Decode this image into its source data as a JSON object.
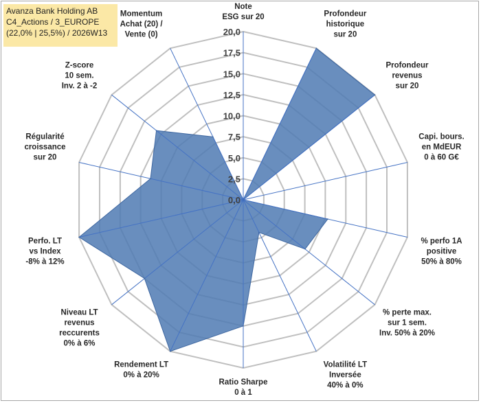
{
  "title": {
    "line1": "Avanza Bank Holding AB",
    "line2": "C4_Actions / 3_EUROPE",
    "line3": "(22,0% | 25,5%) / 2026W13"
  },
  "colors": {
    "fill": "#4f7ab3",
    "stroke": "#3d66a0",
    "grid": "#bfbfbf",
    "spoke": "#4472c4"
  },
  "chart_data": {
    "type": "radar",
    "title": "Avanza Bank Holding AB",
    "rlim": [
      0,
      20
    ],
    "tick_values": [
      0,
      2.5,
      5,
      7.5,
      10,
      12.5,
      15,
      17.5,
      20
    ],
    "tick_labels": [
      "0,0",
      "2,5",
      "5,0",
      "7,5",
      "10,0",
      "12,5",
      "15,0",
      "17,5",
      "20,0"
    ],
    "axes": [
      {
        "label": [
          "Note",
          "ESG sur 20"
        ],
        "value": 0
      },
      {
        "label": [
          "Profondeur",
          "historique",
          "sur 20"
        ],
        "value": 20
      },
      {
        "label": [
          "Profondeur",
          "revenus",
          "sur 20"
        ],
        "value": 20
      },
      {
        "label": [
          "Capi. bours.",
          "en MdEUR",
          "0 à 60 G€"
        ],
        "value": 0
      },
      {
        "label": [
          "% perfo 1A",
          "positive",
          "50% à 80%"
        ],
        "value": 10.3
      },
      {
        "label": [
          "% perte max.",
          "sur 1 sem.",
          "Inv. 50% à 20%"
        ],
        "value": 9.4
      },
      {
        "label": [
          "Volatilité LT",
          "Inversée",
          "40% à 0%"
        ],
        "value": 4.3
      },
      {
        "label": [
          "Ratio Sharpe",
          "0 à 1"
        ],
        "value": 15
      },
      {
        "label": [
          "Rendement LT",
          "0% à 20%"
        ],
        "value": 20
      },
      {
        "label": [
          "Niveau LT",
          "revenus",
          "reccurents",
          "0% à 6%"
        ],
        "value": 15
      },
      {
        "label": [
          "Perfo. LT",
          "vs Index",
          "-8% à 12%"
        ],
        "value": 20
      },
      {
        "label": [
          "Régularité",
          "croissance",
          "sur 20"
        ],
        "value": 11.3
      },
      {
        "label": [
          "Z-score",
          "10 sem.",
          "Inv. 2 à -2"
        ],
        "value": 13.2
      },
      {
        "label": [
          "Momentum",
          "Achat (20) /",
          "Vente (0)"
        ],
        "value": 8.3
      }
    ]
  }
}
